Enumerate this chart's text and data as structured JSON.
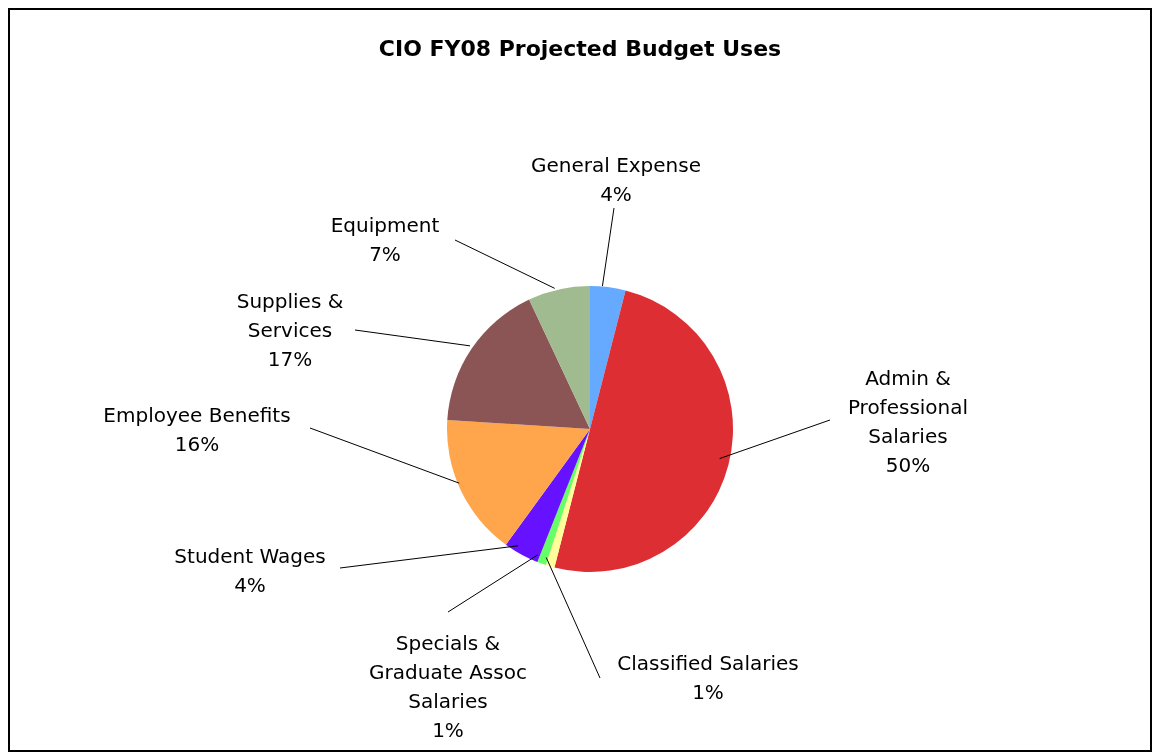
{
  "chart_data": {
    "type": "pie",
    "title": "CIO FY08 Projected Budget Uses",
    "categories": [
      "General Expense",
      "Admin & Professional Salaries",
      "Classified Salaries",
      "Specials & Graduate Assoc Salaries",
      "Student Wages",
      "Employee Benefits",
      "Supplies & Services",
      "Equipment"
    ],
    "values": [
      4,
      50,
      1,
      1,
      4,
      16,
      17,
      7
    ],
    "colors": [
      "#66aaff",
      "#dd2e33",
      "#ffff99",
      "#66ff66",
      "#6611ff",
      "#ffa64d",
      "#8b5555",
      "#a0bb8f"
    ],
    "value_labels": [
      "4%",
      "50%",
      "1%",
      "1%",
      "4%",
      "16%",
      "17%",
      "7%"
    ],
    "legend": false
  }
}
